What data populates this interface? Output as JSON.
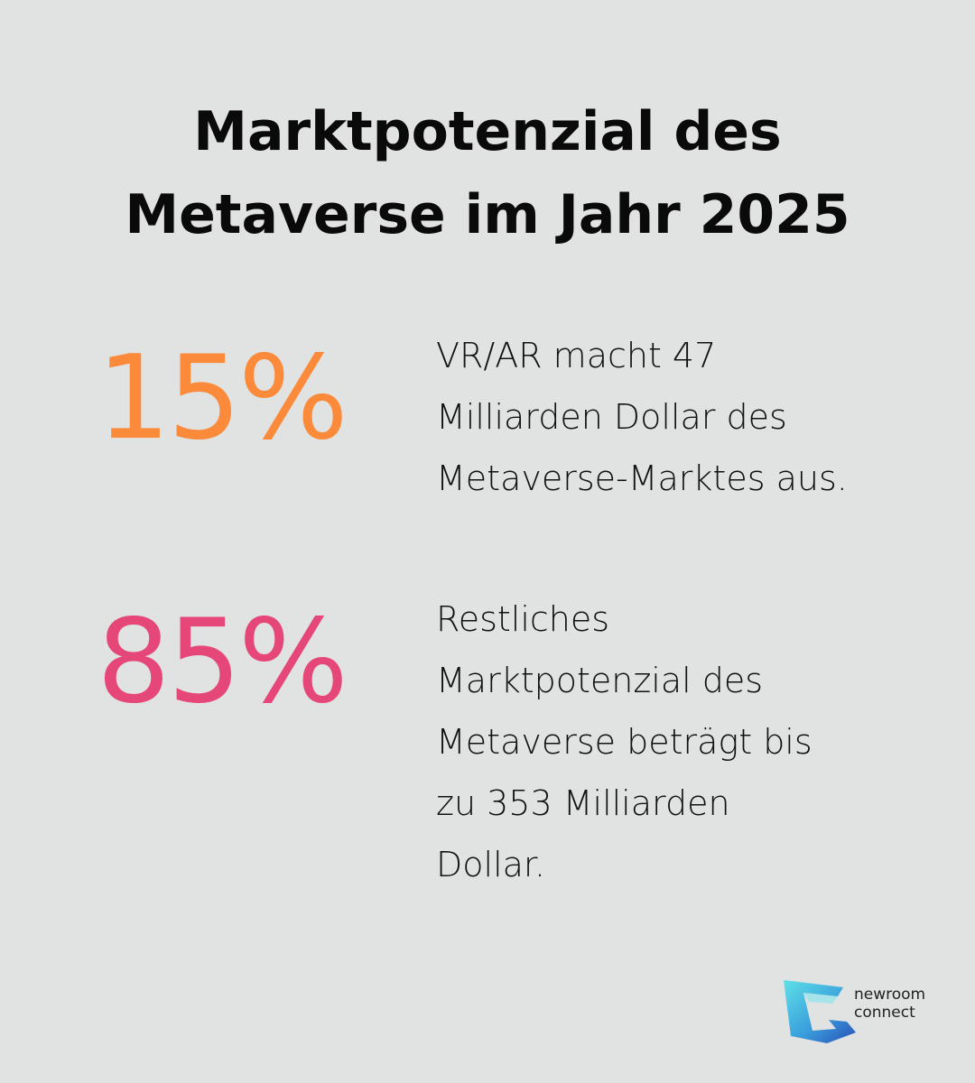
{
  "title": {
    "line1": "Marktpotenzial des",
    "line2": "Metaverse im Jahr 2025"
  },
  "stats": [
    {
      "value": "15%",
      "color": "#fb8a3a",
      "lines": [
        "VR/AR macht 47",
        "Milliarden Dollar des",
        "Metaverse-Marktes aus."
      ]
    },
    {
      "value": "85%",
      "color": "#e64779",
      "lines": [
        "Restliches",
        "Marktpotenzial des",
        "Metaverse beträgt bis",
        "zu 353 Milliarden",
        "Dollar."
      ]
    }
  ],
  "logo": {
    "icon": "newroom-connect-logo-icon",
    "line1": "newroom",
    "line2": "connect"
  }
}
